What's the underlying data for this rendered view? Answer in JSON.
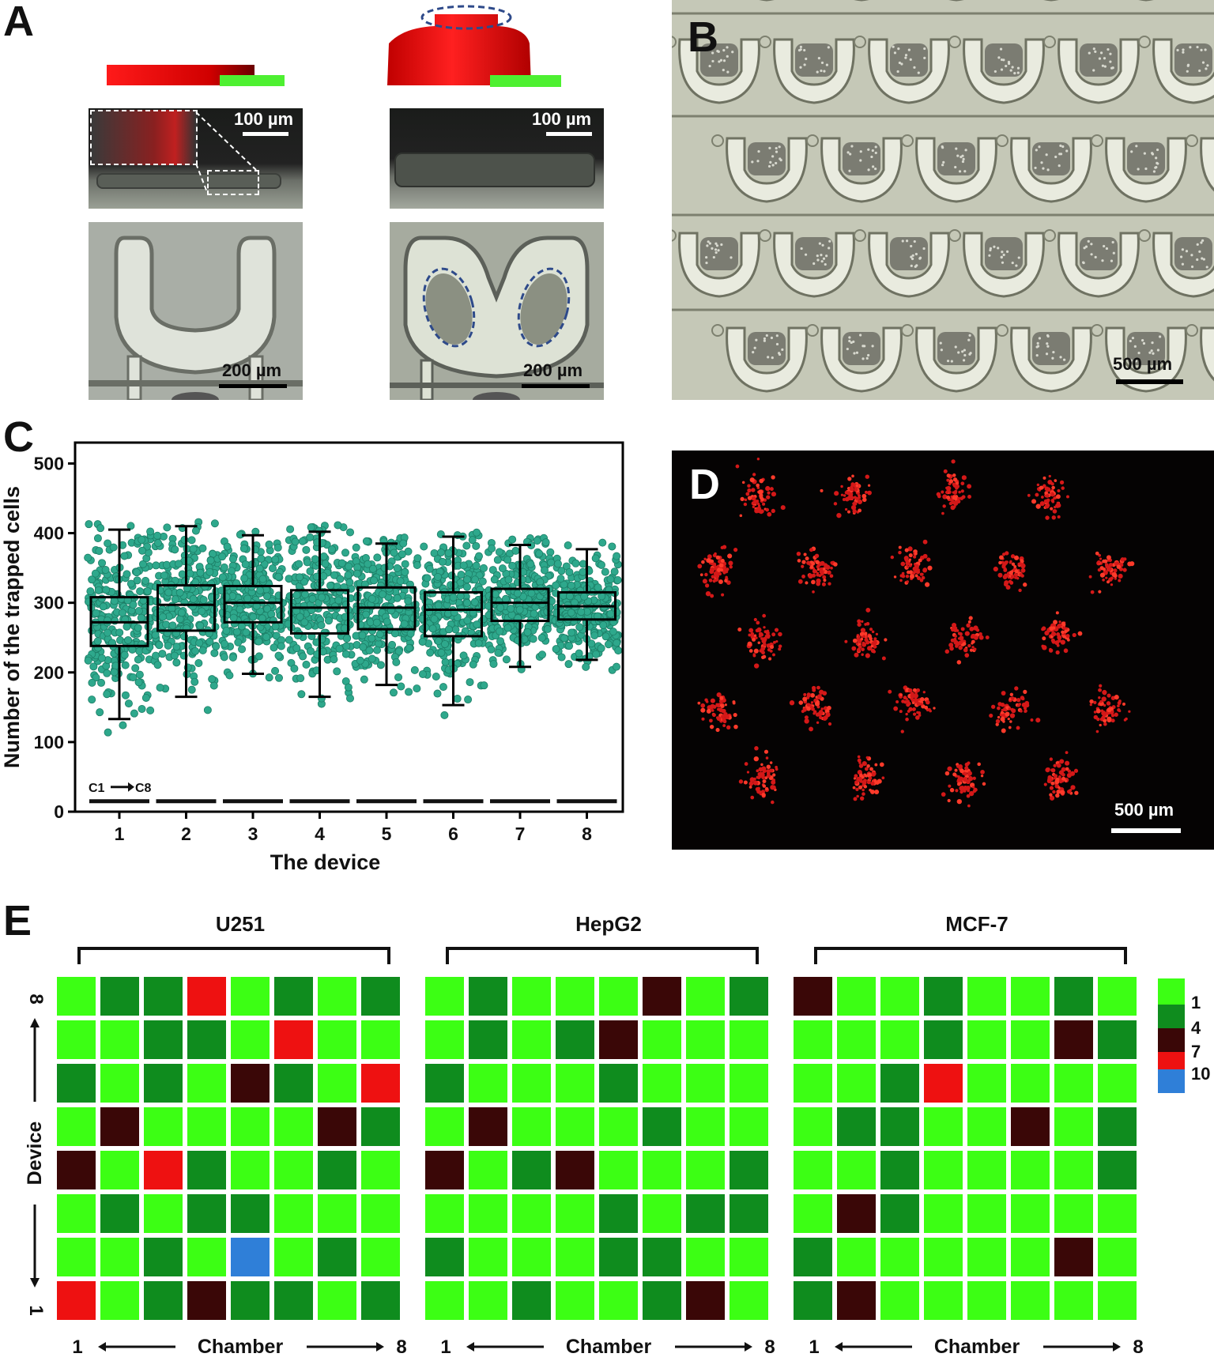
{
  "panels": {
    "A": {
      "letter": "A",
      "scale_top_left": "100 µm",
      "scale_top_right": "100 µm",
      "scale_bottom_left": "200 µm",
      "scale_bottom_right": "200 µm"
    },
    "B": {
      "letter": "B",
      "scale": "500 µm"
    },
    "C": {
      "letter": "C"
    },
    "D": {
      "letter": "D",
      "scale": "500 µm"
    },
    "E": {
      "letter": "E"
    }
  },
  "chart_data": [
    {
      "type": "box",
      "ylabel": "Number of the trapped cells",
      "xlabel": "The device",
      "ylim": [
        0,
        530
      ],
      "yticks": [
        0,
        100,
        200,
        300,
        400,
        500
      ],
      "categories": [
        "1",
        "2",
        "3",
        "4",
        "5",
        "6",
        "7",
        "8"
      ],
      "annotation": "C1",
      "annotation_end": "C8",
      "boxes": [
        {
          "min": 133,
          "q1": 238,
          "median": 272,
          "q3": 308,
          "max": 405
        },
        {
          "min": 165,
          "q1": 260,
          "median": 297,
          "q3": 325,
          "max": 410
        },
        {
          "min": 198,
          "q1": 272,
          "median": 300,
          "q3": 324,
          "max": 397
        },
        {
          "min": 165,
          "q1": 256,
          "median": 293,
          "q3": 318,
          "max": 402
        },
        {
          "min": 182,
          "q1": 262,
          "median": 293,
          "q3": 322,
          "max": 385
        },
        {
          "min": 153,
          "q1": 252,
          "median": 290,
          "q3": 315,
          "max": 395
        },
        {
          "min": 208,
          "q1": 274,
          "median": 300,
          "q3": 320,
          "max": 383
        },
        {
          "min": 218,
          "q1": 276,
          "median": 295,
          "q3": 315,
          "max": 377
        }
      ],
      "point_color": "#2ea88c"
    },
    {
      "type": "heatmap",
      "groups": [
        "U251",
        "HepG2",
        "MCF-7"
      ],
      "ylabel": "Device",
      "xlabel": "Chamber",
      "row_labels": [
        "8",
        "1"
      ],
      "col_labels": [
        "1",
        "8"
      ],
      "legend_values": [
        "1",
        "4",
        "7",
        "10"
      ],
      "legend_colors": [
        "#3cff14",
        "#0f8c1e",
        "#3a0707",
        "#ee1111",
        "#2f7fd8"
      ],
      "rows_order": "top row = device 8, bottom row = device 1",
      "grids": {
        "U251": [
          [
            1,
            3,
            3,
            7,
            1,
            3,
            1,
            3
          ],
          [
            1,
            1,
            3,
            3,
            1,
            7,
            1,
            1
          ],
          [
            3,
            1,
            3,
            1,
            4,
            3,
            1,
            7
          ],
          [
            1,
            4,
            1,
            1,
            1,
            1,
            4,
            3
          ],
          [
            4,
            1,
            7,
            3,
            1,
            1,
            3,
            1
          ],
          [
            1,
            3,
            1,
            3,
            3,
            1,
            1,
            1
          ],
          [
            1,
            1,
            3,
            1,
            10,
            1,
            3,
            1
          ],
          [
            7,
            1,
            3,
            4,
            3,
            3,
            1,
            3
          ]
        ],
        "HepG2": [
          [
            1,
            3,
            1,
            1,
            1,
            4,
            1,
            3
          ],
          [
            1,
            3,
            1,
            3,
            4,
            1,
            1,
            1
          ],
          [
            3,
            1,
            1,
            1,
            3,
            1,
            1,
            1
          ],
          [
            1,
            4,
            1,
            1,
            1,
            3,
            1,
            1
          ],
          [
            4,
            1,
            3,
            4,
            1,
            1,
            1,
            3
          ],
          [
            1,
            1,
            1,
            1,
            3,
            1,
            3,
            3
          ],
          [
            3,
            1,
            1,
            1,
            3,
            3,
            1,
            1
          ],
          [
            1,
            1,
            3,
            1,
            1,
            3,
            4,
            1
          ]
        ],
        "MCF-7": [
          [
            4,
            1,
            1,
            3,
            1,
            1,
            3,
            1
          ],
          [
            1,
            1,
            1,
            3,
            1,
            1,
            4,
            3
          ],
          [
            1,
            1,
            3,
            7,
            1,
            1,
            1,
            1
          ],
          [
            1,
            3,
            3,
            1,
            1,
            4,
            1,
            3
          ],
          [
            1,
            1,
            3,
            1,
            1,
            1,
            1,
            3
          ],
          [
            1,
            4,
            3,
            1,
            1,
            1,
            1,
            1
          ],
          [
            3,
            1,
            1,
            1,
            1,
            1,
            4,
            1
          ],
          [
            3,
            4,
            1,
            1,
            1,
            1,
            1,
            1
          ]
        ]
      }
    }
  ]
}
